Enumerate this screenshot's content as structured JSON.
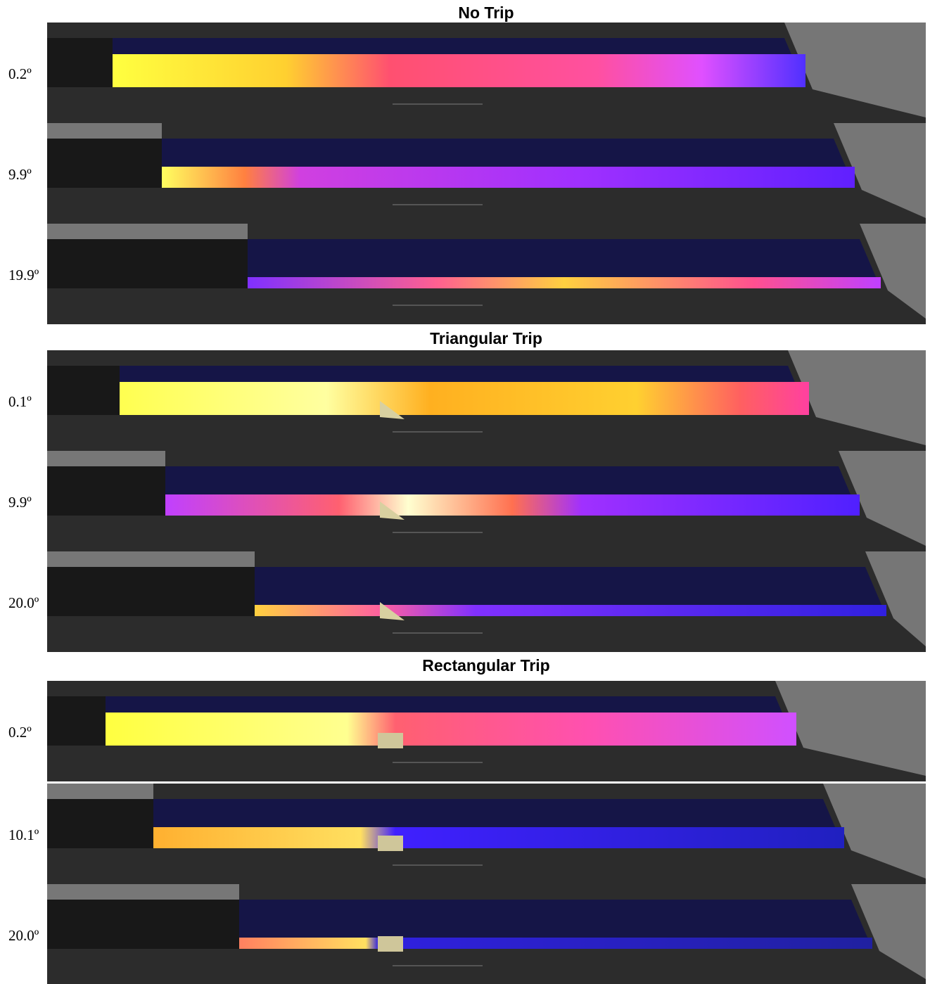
{
  "sections": [
    {
      "title": "No Trip",
      "panels": [
        {
          "label": "0.2º"
        },
        {
          "label": "9.9º"
        },
        {
          "label": "19.9º"
        }
      ]
    },
    {
      "title": "Triangular Trip",
      "panels": [
        {
          "label": "0.1º"
        },
        {
          "label": "9.9º"
        },
        {
          "label": "20.0º"
        }
      ]
    },
    {
      "title": "Rectangular Trip",
      "panels": [
        {
          "label": "0.2º"
        },
        {
          "label": "10.1º"
        },
        {
          "label": "20.0º"
        }
      ]
    }
  ]
}
